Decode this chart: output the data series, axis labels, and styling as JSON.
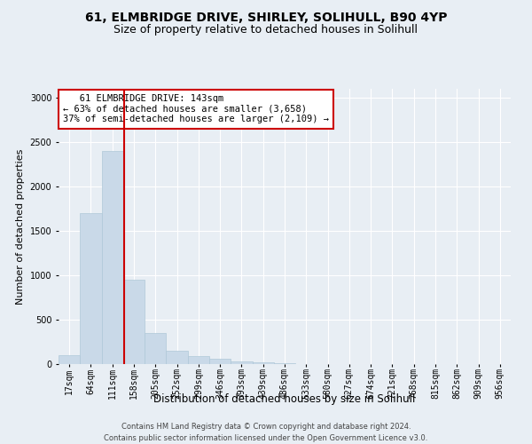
{
  "title_line1": "61, ELMBRIDGE DRIVE, SHIRLEY, SOLIHULL, B90 4YP",
  "title_line2": "Size of property relative to detached houses in Solihull",
  "xlabel": "Distribution of detached houses by size in Solihull",
  "ylabel": "Number of detached properties",
  "footer_line1": "Contains HM Land Registry data © Crown copyright and database right 2024.",
  "footer_line2": "Contains public sector information licensed under the Open Government Licence v3.0.",
  "annotation_line1": "   61 ELMBRIDGE DRIVE: 143sqm",
  "annotation_line2": "← 63% of detached houses are smaller (3,658)",
  "annotation_line3": "37% of semi-detached houses are larger (2,109) →",
  "bar_labels": [
    "17sqm",
    "64sqm",
    "111sqm",
    "158sqm",
    "205sqm",
    "252sqm",
    "299sqm",
    "346sqm",
    "393sqm",
    "439sqm",
    "486sqm",
    "533sqm",
    "580sqm",
    "627sqm",
    "674sqm",
    "721sqm",
    "768sqm",
    "815sqm",
    "862sqm",
    "909sqm",
    "956sqm"
  ],
  "bar_values": [
    100,
    1700,
    2400,
    950,
    350,
    150,
    90,
    60,
    35,
    20,
    8,
    3,
    2,
    1,
    0,
    0,
    0,
    0,
    0,
    0,
    0
  ],
  "bar_color": "#c9d9e8",
  "bar_edgecolor": "#afc8d8",
  "red_line_x": 2.55,
  "ylim": [
    0,
    3100
  ],
  "yticks": [
    0,
    500,
    1000,
    1500,
    2000,
    2500,
    3000
  ],
  "background_color": "#e8eef4",
  "plot_bg_color": "#e8eef4",
  "grid_color": "#ffffff",
  "annotation_box_color": "#ffffff",
  "annotation_box_edgecolor": "#cc0000",
  "red_line_color": "#cc0000",
  "title_fontsize": 10,
  "subtitle_fontsize": 9,
  "tick_fontsize": 7,
  "ylabel_fontsize": 8,
  "xlabel_fontsize": 8.5,
  "annotation_fontsize": 7.5,
  "footer_fontsize": 6
}
